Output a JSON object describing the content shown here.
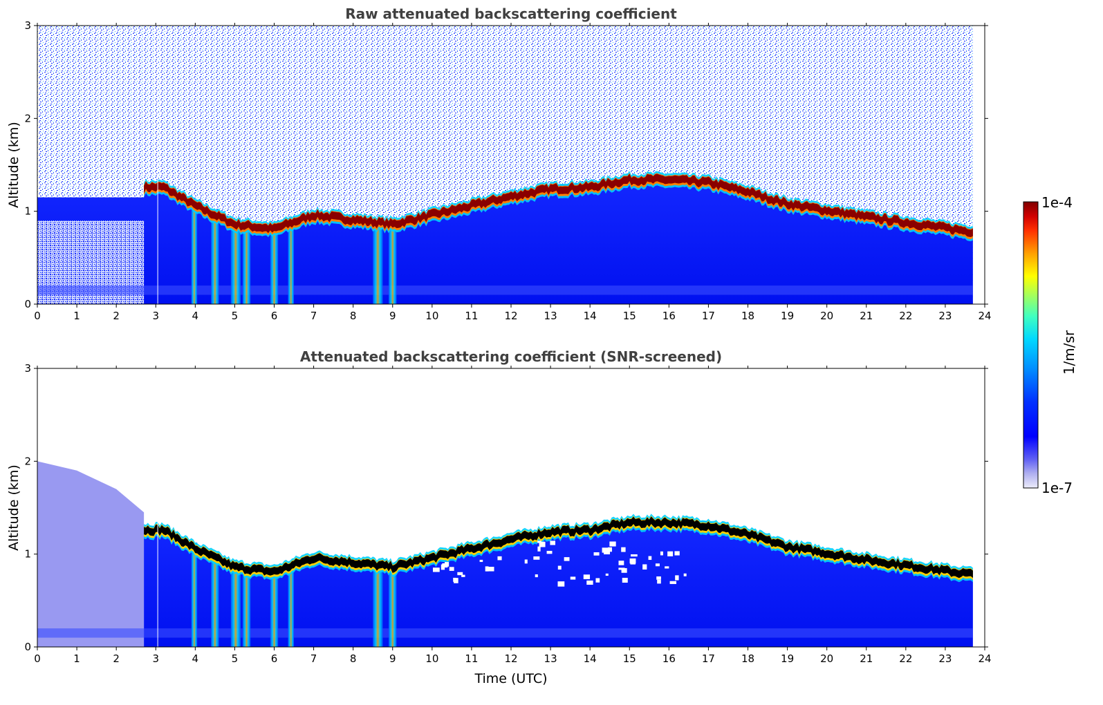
{
  "chart_data": [
    {
      "type": "heatmap",
      "title": "Raw attenuated backscattering coefficient",
      "xlabel": "",
      "ylabel": "Altitude (km)",
      "xlim": [
        0,
        24
      ],
      "ylim": [
        0,
        3
      ],
      "x_ticks": [
        "0",
        "1",
        "2",
        "3",
        "4",
        "5",
        "6",
        "7",
        "8",
        "9",
        "10",
        "11",
        "12",
        "13",
        "14",
        "15",
        "16",
        "17",
        "18",
        "19",
        "20",
        "21",
        "22",
        "23",
        "24"
      ],
      "y_ticks": [
        "0",
        "1",
        "2",
        "3"
      ],
      "data_end_time": 23.7,
      "layer_top": [
        {
          "t": 2.7,
          "alt": 1.3
        },
        {
          "t": 3.2,
          "alt": 1.3
        },
        {
          "t": 4.0,
          "alt": 1.1
        },
        {
          "t": 5.0,
          "alt": 0.9
        },
        {
          "t": 6.0,
          "alt": 0.85
        },
        {
          "t": 7.0,
          "alt": 1.0
        },
        {
          "t": 8.0,
          "alt": 0.95
        },
        {
          "t": 9.0,
          "alt": 0.9
        },
        {
          "t": 10.0,
          "alt": 1.0
        },
        {
          "t": 11.0,
          "alt": 1.1
        },
        {
          "t": 12.0,
          "alt": 1.2
        },
        {
          "t": 13.0,
          "alt": 1.28
        },
        {
          "t": 14.0,
          "alt": 1.3
        },
        {
          "t": 15.0,
          "alt": 1.38
        },
        {
          "t": 16.0,
          "alt": 1.38
        },
        {
          "t": 17.0,
          "alt": 1.35
        },
        {
          "t": 18.0,
          "alt": 1.25
        },
        {
          "t": 19.0,
          "alt": 1.12
        },
        {
          "t": 20.0,
          "alt": 1.05
        },
        {
          "t": 21.0,
          "alt": 0.98
        },
        {
          "t": 22.0,
          "alt": 0.92
        },
        {
          "t": 23.0,
          "alt": 0.86
        },
        {
          "t": 23.7,
          "alt": 0.82
        }
      ],
      "precip_streaks": [
        {
          "t": 3.9,
          "w": 0.15
        },
        {
          "t": 4.4,
          "w": 0.2
        },
        {
          "t": 4.9,
          "w": 0.25
        },
        {
          "t": 5.2,
          "w": 0.2
        },
        {
          "t": 5.9,
          "w": 0.2
        },
        {
          "t": 6.35,
          "w": 0.15
        },
        {
          "t": 8.5,
          "w": 0.25
        },
        {
          "t": 8.9,
          "w": 0.2
        }
      ]
    },
    {
      "type": "heatmap",
      "title": "Attenuated backscattering coefficient (SNR-screened)",
      "xlabel": "Time (UTC)",
      "ylabel": "Altitude (km)",
      "xlim": [
        0,
        24
      ],
      "ylim": [
        0,
        3
      ],
      "x_ticks": [
        "0",
        "1",
        "2",
        "3",
        "4",
        "5",
        "6",
        "7",
        "8",
        "9",
        "10",
        "11",
        "12",
        "13",
        "14",
        "15",
        "16",
        "17",
        "18",
        "19",
        "20",
        "21",
        "22",
        "23",
        "24"
      ],
      "y_ticks": [
        "0",
        "1",
        "2",
        "3"
      ],
      "data_end_time": 23.7,
      "colorbar": {
        "label": "1/m/sr",
        "max_label": "1e-4",
        "min_label": "1e-7",
        "colormap": "jet (white-to-blue at low end)",
        "colors": [
          "#e8e8f8",
          "#b0b0f0",
          "#7070f0",
          "#0000ff",
          "#0040ff",
          "#0090ff",
          "#00d0ff",
          "#40ffc0",
          "#a0ff60",
          "#ffff00",
          "#ffb000",
          "#ff5000",
          "#e00000",
          "#800000"
        ]
      }
    }
  ]
}
